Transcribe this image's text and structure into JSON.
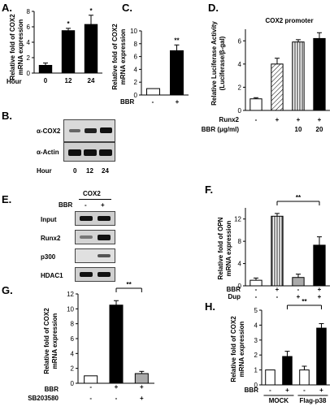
{
  "panels": {
    "A": {
      "letter": "A.",
      "ylabel": [
        "Relative fold of COX2",
        "mRNA expression"
      ],
      "xtitle": "Hour"
    },
    "B": {
      "letter": "B.",
      "rows": [
        "α-COX2",
        "α-Actin"
      ],
      "xtitle": "Hour",
      "cols": [
        "0",
        "12",
        "24"
      ]
    },
    "C": {
      "letter": "C.",
      "ylabel": [
        "Relative fold of COX2",
        "mRNA expression"
      ],
      "treat": "BBR",
      "cols": [
        "-",
        "+"
      ]
    },
    "D": {
      "letter": "D.",
      "title": "COX2 promoter",
      "ylabel": [
        "Relative Luciferase Activity",
        "(Luciferase/β-gal)"
      ],
      "row1": "Runx2",
      "row2": "BBR (μg/ml)",
      "row1_vals": [
        "-",
        "+",
        "+",
        "+"
      ],
      "row2_vals": [
        "",
        "",
        "10",
        "20"
      ]
    },
    "E": {
      "letter": "E.",
      "header": "COX2",
      "treat": "BBR",
      "cols": [
        "-",
        "+"
      ],
      "rows": [
        "Input",
        "Runx2",
        "p300",
        "HDAC1"
      ]
    },
    "F": {
      "letter": "F.",
      "ylabel": [
        "Relative fold of OPN",
        "mRNA expression"
      ],
      "row1": "BBR",
      "row2": "Dup",
      "row1_vals": [
        "-",
        "+",
        "-",
        "+"
      ],
      "row2_vals": [
        "-",
        "-",
        "+",
        "+"
      ],
      "sig": "**"
    },
    "G": {
      "letter": "G.",
      "ylabel": [
        "Relative fold of COX2",
        "mRNA expression"
      ],
      "row1": "BBR",
      "row2": "SB203580",
      "row1_vals": [
        "-",
        "+",
        "+"
      ],
      "row2_vals": [
        "-",
        "-",
        "+"
      ],
      "sig": "**"
    },
    "H": {
      "letter": "H.",
      "ylabel": [
        "Relative fold of COX2",
        "mRNA expression"
      ],
      "row1": "BBR",
      "row1_vals": [
        "-",
        "+",
        "-",
        "+"
      ],
      "groups": [
        "MOCK",
        "Flag-p38"
      ],
      "sig": "**"
    }
  },
  "chart_data": [
    {
      "panel": "A",
      "type": "bar",
      "categories": [
        "0",
        "12",
        "24"
      ],
      "values": [
        1,
        5.5,
        6.3
      ],
      "errors": [
        0.3,
        0.3,
        1.2
      ],
      "sig": [
        "",
        "*",
        "*"
      ],
      "ylim": [
        0,
        8
      ],
      "yticks": [
        0,
        2,
        4,
        6,
        8
      ],
      "fills": [
        "#000000",
        "#000000",
        "#000000"
      ],
      "patterns": [
        "",
        "",
        ""
      ]
    },
    {
      "panel": "C",
      "type": "bar",
      "categories": [
        "-",
        "+"
      ],
      "values": [
        1,
        6.9
      ],
      "errors": [
        0,
        0.9
      ],
      "sig": [
        "",
        "**"
      ],
      "ylim": [
        0,
        10
      ],
      "yticks": [
        0,
        2,
        4,
        6,
        8,
        10
      ],
      "fills": [
        "#ffffff",
        "#000000"
      ],
      "patterns": [
        "",
        ""
      ]
    },
    {
      "panel": "D",
      "type": "bar",
      "categories": [
        "1",
        "2",
        "3",
        "4"
      ],
      "values": [
        1,
        4.0,
        5.9,
        6.2
      ],
      "errors": [
        0.1,
        0.5,
        0.2,
        0.5
      ],
      "sig": [
        "",
        "",
        "",
        ""
      ],
      "ylim": [
        0,
        7
      ],
      "yticks": [
        0,
        2,
        4,
        6
      ],
      "fills": [
        "#ffffff",
        "#ffffff",
        "#ffffff",
        "#000000"
      ],
      "patterns": [
        "",
        "diag",
        "vert",
        ""
      ]
    },
    {
      "panel": "F",
      "type": "bar",
      "categories": [
        "1",
        "2",
        "3",
        "4"
      ],
      "values": [
        1,
        12.5,
        1.5,
        7.3
      ],
      "errors": [
        0.4,
        0.5,
        0.6,
        1.5
      ],
      "sig": [
        "",
        "",
        "",
        ""
      ],
      "ylim": [
        0,
        14
      ],
      "yticks": [
        0,
        4,
        8,
        12
      ],
      "fills": [
        "#ffffff",
        "#ffffff",
        "#aaaaaa",
        "#000000"
      ],
      "patterns": [
        "",
        "vert",
        "",
        ""
      ]
    },
    {
      "panel": "G",
      "type": "bar",
      "categories": [
        "1",
        "2",
        "3"
      ],
      "values": [
        1,
        10.5,
        1.3
      ],
      "errors": [
        0,
        0.6,
        0.3
      ],
      "sig": [
        "",
        "",
        ""
      ],
      "ylim": [
        0,
        12
      ],
      "yticks": [
        0,
        2,
        4,
        6,
        8,
        10,
        12
      ],
      "fills": [
        "#ffffff",
        "#000000",
        "#aaaaaa"
      ],
      "patterns": [
        "",
        "",
        ""
      ]
    },
    {
      "panel": "H",
      "type": "bar",
      "categories": [
        "1",
        "2",
        "3",
        "4"
      ],
      "values": [
        1,
        1.9,
        1.0,
        3.8
      ],
      "errors": [
        0,
        0.35,
        0.25,
        0.3
      ],
      "sig": [
        "",
        "",
        "",
        ""
      ],
      "ylim": [
        0,
        5
      ],
      "yticks": [
        0,
        1,
        2,
        3,
        4,
        5
      ],
      "fills": [
        "#ffffff",
        "#000000",
        "#ffffff",
        "#000000"
      ],
      "patterns": [
        "",
        "",
        "",
        ""
      ]
    }
  ]
}
